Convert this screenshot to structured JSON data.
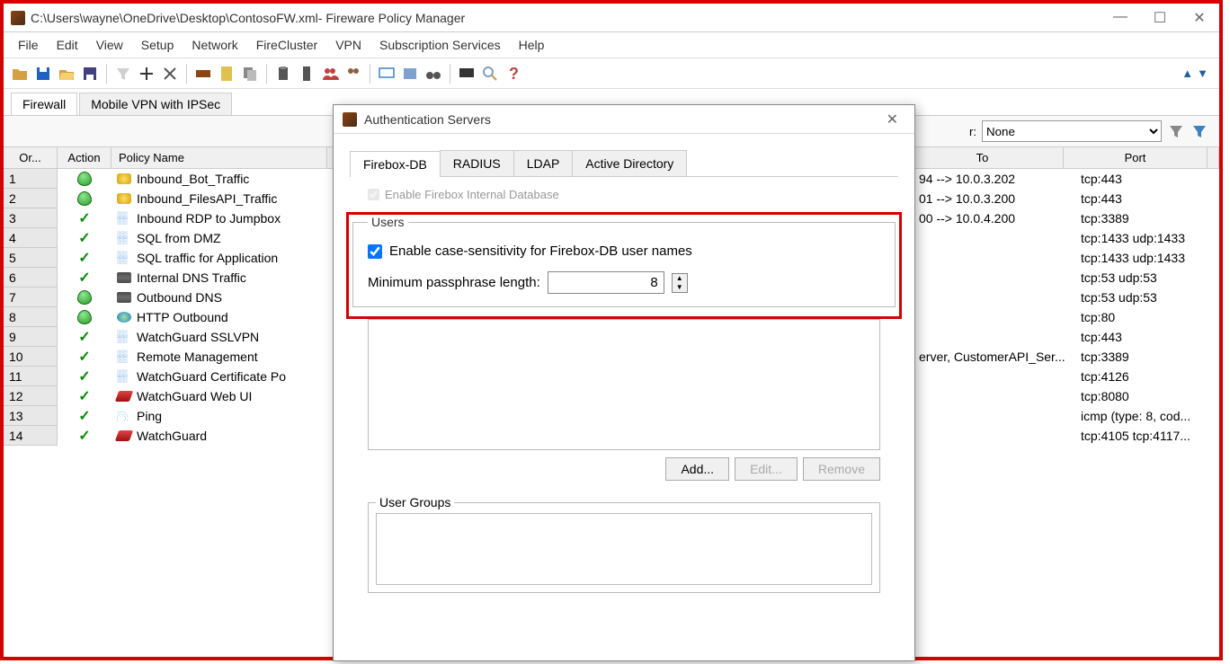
{
  "window": {
    "title": "C:\\Users\\wayne\\OneDrive\\Desktop\\ContosoFW.xml- Fireware Policy Manager"
  },
  "menu": [
    "File",
    "Edit",
    "View",
    "Setup",
    "Network",
    "FireCluster",
    "VPN",
    "Subscription Services",
    "Help"
  ],
  "main_tabs": [
    {
      "label": "Firewall",
      "active": true
    },
    {
      "label": "Mobile VPN with IPSec",
      "active": false
    }
  ],
  "filter": {
    "label": "r:",
    "value": "None"
  },
  "grid": {
    "columns": [
      "Or...",
      "Action",
      "Policy Name",
      "To",
      "Port"
    ],
    "rows": [
      {
        "or": "1",
        "action": "shield",
        "icon": "yellow",
        "name": "Inbound_Bot_Traffic",
        "to": "94 --> 10.0.3.202",
        "port": "tcp:443"
      },
      {
        "or": "2",
        "action": "shield",
        "icon": "yellow",
        "name": "Inbound_FilesAPI_Traffic",
        "to": "01 --> 10.0.3.200",
        "port": "tcp:443"
      },
      {
        "or": "3",
        "action": "check",
        "icon": "dots",
        "name": "Inbound RDP to Jumpbox",
        "to": "00 --> 10.0.4.200",
        "port": "tcp:3389"
      },
      {
        "or": "4",
        "action": "check",
        "icon": "dots",
        "name": "SQL from DMZ",
        "to": "",
        "port": "tcp:1433 udp:1433"
      },
      {
        "or": "5",
        "action": "check",
        "icon": "dots",
        "name": "SQL traffic for Application",
        "to": "",
        "port": "tcp:1433 udp:1433"
      },
      {
        "or": "6",
        "action": "check",
        "icon": "server",
        "name": "Internal DNS Traffic",
        "to": "",
        "port": "tcp:53 udp:53"
      },
      {
        "or": "7",
        "action": "shield",
        "icon": "server",
        "name": "Outbound DNS",
        "to": "",
        "port": "tcp:53 udp:53"
      },
      {
        "or": "8",
        "action": "shield",
        "icon": "globe",
        "name": "HTTP Outbound",
        "to": "",
        "port": "tcp:80"
      },
      {
        "or": "9",
        "action": "check",
        "icon": "dots",
        "name": "WatchGuard SSLVPN",
        "to": "",
        "port": "tcp:443"
      },
      {
        "or": "10",
        "action": "check",
        "icon": "dots",
        "name": "Remote Management",
        "to": "erver, CustomerAPI_Ser...",
        "port": "tcp:3389"
      },
      {
        "or": "11",
        "action": "check",
        "icon": "dots",
        "name": "WatchGuard Certificate Po",
        "to": "",
        "port": "tcp:4126"
      },
      {
        "or": "12",
        "action": "check",
        "icon": "red",
        "name": "WatchGuard Web UI",
        "to": "",
        "port": "tcp:8080"
      },
      {
        "or": "13",
        "action": "check",
        "icon": "signal",
        "name": "Ping",
        "to": "",
        "port": "icmp (type: 8, cod..."
      },
      {
        "or": "14",
        "action": "check",
        "icon": "red",
        "name": "WatchGuard",
        "to": "",
        "port": "tcp:4105 tcp:4117..."
      }
    ]
  },
  "dialog": {
    "title": "Authentication Servers",
    "tabs": [
      {
        "label": "Firebox-DB",
        "active": true
      },
      {
        "label": "RADIUS",
        "active": false
      },
      {
        "label": "LDAP",
        "active": false
      },
      {
        "label": "Active Directory",
        "active": false
      }
    ],
    "enable_label": "Enable Firebox Internal Database",
    "users_legend": "Users",
    "case_label": "Enable case-sensitivity for Firebox-DB user names",
    "case_checked": true,
    "min_label": "Minimum passphrase length:",
    "min_value": "8",
    "buttons": {
      "add": "Add...",
      "edit": "Edit...",
      "remove": "Remove"
    },
    "groups_legend": "User Groups"
  }
}
